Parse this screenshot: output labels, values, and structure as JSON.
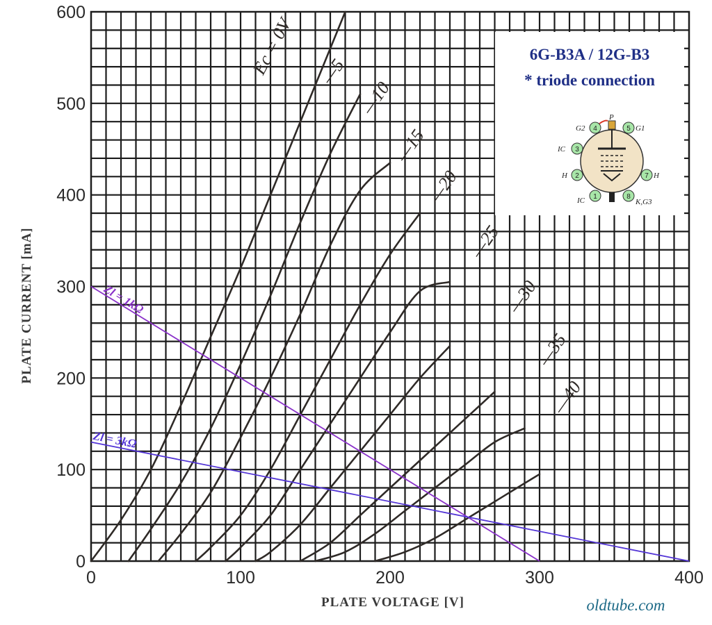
{
  "chart_data": {
    "type": "line",
    "title": "6G-B3A / 12G-B3",
    "subtitle": "* triode connection",
    "xlabel": "PLATE  VOLTAGE [V]",
    "ylabel": "PLATE  CURRENT [mA]",
    "xlim": [
      0,
      400
    ],
    "ylim": [
      0,
      600
    ],
    "x_ticks": [
      "0",
      "100",
      "200",
      "300",
      "400"
    ],
    "y_ticks": [
      "0",
      "100",
      "200",
      "300",
      "400",
      "500",
      "600"
    ],
    "grid": true,
    "series": [
      {
        "name": "Ec = 0V",
        "points": [
          [
            0,
            0
          ],
          [
            20,
            45
          ],
          [
            40,
            100
          ],
          [
            60,
            170
          ],
          [
            80,
            245
          ],
          [
            100,
            320
          ],
          [
            120,
            400
          ],
          [
            140,
            480
          ],
          [
            160,
            560
          ],
          [
            170,
            600
          ]
        ]
      },
      {
        "name": "-5",
        "points": [
          [
            25,
            0
          ],
          [
            40,
            35
          ],
          [
            60,
            85
          ],
          [
            80,
            145
          ],
          [
            100,
            215
          ],
          [
            120,
            290
          ],
          [
            140,
            370
          ],
          [
            160,
            445
          ],
          [
            180,
            510
          ]
        ]
      },
      {
        "name": "-10",
        "points": [
          [
            45,
            0
          ],
          [
            60,
            30
          ],
          [
            80,
            75
          ],
          [
            100,
            135
          ],
          [
            120,
            200
          ],
          [
            140,
            270
          ],
          [
            160,
            345
          ],
          [
            180,
            405
          ],
          [
            200,
            435
          ]
        ]
      },
      {
        "name": "-15",
        "points": [
          [
            70,
            0
          ],
          [
            80,
            15
          ],
          [
            100,
            50
          ],
          [
            120,
            100
          ],
          [
            140,
            160
          ],
          [
            160,
            220
          ],
          [
            180,
            280
          ],
          [
            200,
            335
          ],
          [
            220,
            380
          ]
        ]
      },
      {
        "name": "-20",
        "points": [
          [
            90,
            0
          ],
          [
            100,
            15
          ],
          [
            120,
            50
          ],
          [
            140,
            100
          ],
          [
            160,
            150
          ],
          [
            180,
            200
          ],
          [
            200,
            250
          ],
          [
            220,
            295
          ],
          [
            240,
            305
          ]
        ]
      },
      {
        "name": "-25",
        "points": [
          [
            110,
            0
          ],
          [
            120,
            10
          ],
          [
            140,
            40
          ],
          [
            160,
            80
          ],
          [
            180,
            120
          ],
          [
            200,
            160
          ],
          [
            220,
            200
          ],
          [
            240,
            235
          ]
        ]
      },
      {
        "name": "-30",
        "points": [
          [
            140,
            0
          ],
          [
            160,
            20
          ],
          [
            180,
            50
          ],
          [
            200,
            80
          ],
          [
            220,
            110
          ],
          [
            240,
            140
          ],
          [
            260,
            170
          ],
          [
            270,
            185
          ]
        ]
      },
      {
        "name": "-35",
        "points": [
          [
            150,
            0
          ],
          [
            170,
            10
          ],
          [
            190,
            30
          ],
          [
            210,
            55
          ],
          [
            230,
            80
          ],
          [
            250,
            105
          ],
          [
            270,
            130
          ],
          [
            290,
            145
          ]
        ]
      },
      {
        "name": "-40",
        "points": [
          [
            190,
            0
          ],
          [
            210,
            10
          ],
          [
            230,
            25
          ],
          [
            250,
            45
          ],
          [
            270,
            65
          ],
          [
            290,
            85
          ],
          [
            300,
            95
          ]
        ]
      }
    ],
    "load_lines": [
      {
        "name": "Zl = 1kΩ",
        "points": [
          [
            0,
            300
          ],
          [
            300,
            0
          ]
        ],
        "color": "#8a32c9"
      },
      {
        "name": "Zl = 3kΩ",
        "points": [
          [
            0,
            130
          ],
          [
            400,
            0
          ]
        ],
        "color": "#5335d6"
      }
    ],
    "curve_label_positions": [
      {
        "text": "Ec = 0V",
        "at": [
          115,
          530
        ]
      },
      {
        "text": "-5",
        "at": [
          160,
          520
        ]
      },
      {
        "text": "-10",
        "at": [
          187,
          487
        ]
      },
      {
        "text": "-15",
        "at": [
          210,
          435
        ]
      },
      {
        "text": "-20",
        "at": [
          232,
          390
        ]
      },
      {
        "text": "-25",
        "at": [
          260,
          330
        ]
      },
      {
        "text": "-30",
        "at": [
          285,
          270
        ]
      },
      {
        "text": "-35",
        "at": [
          305,
          212
        ]
      },
      {
        "text": "-40",
        "at": [
          315,
          160
        ]
      }
    ]
  },
  "info_box": {
    "line1": "6G-B3A / 12G-B3",
    "line2": "* triode connection",
    "pin_labels": {
      "p": "P",
      "g2": "G2",
      "g1": "G1",
      "ic3": "IC",
      "h2": "H",
      "h7": "H",
      "ic1": "IC",
      "kg3": "K,G3",
      "n1": "1",
      "n2": "2",
      "n3": "3",
      "n4": "4",
      "n5": "5",
      "n7": "7",
      "n8": "8"
    }
  },
  "credit": "oldtube.com",
  "colors": {
    "grid": "#1c1c1c",
    "curve": "#2f2a27",
    "title": "#1f2f86",
    "credit": "#1d6a87"
  }
}
